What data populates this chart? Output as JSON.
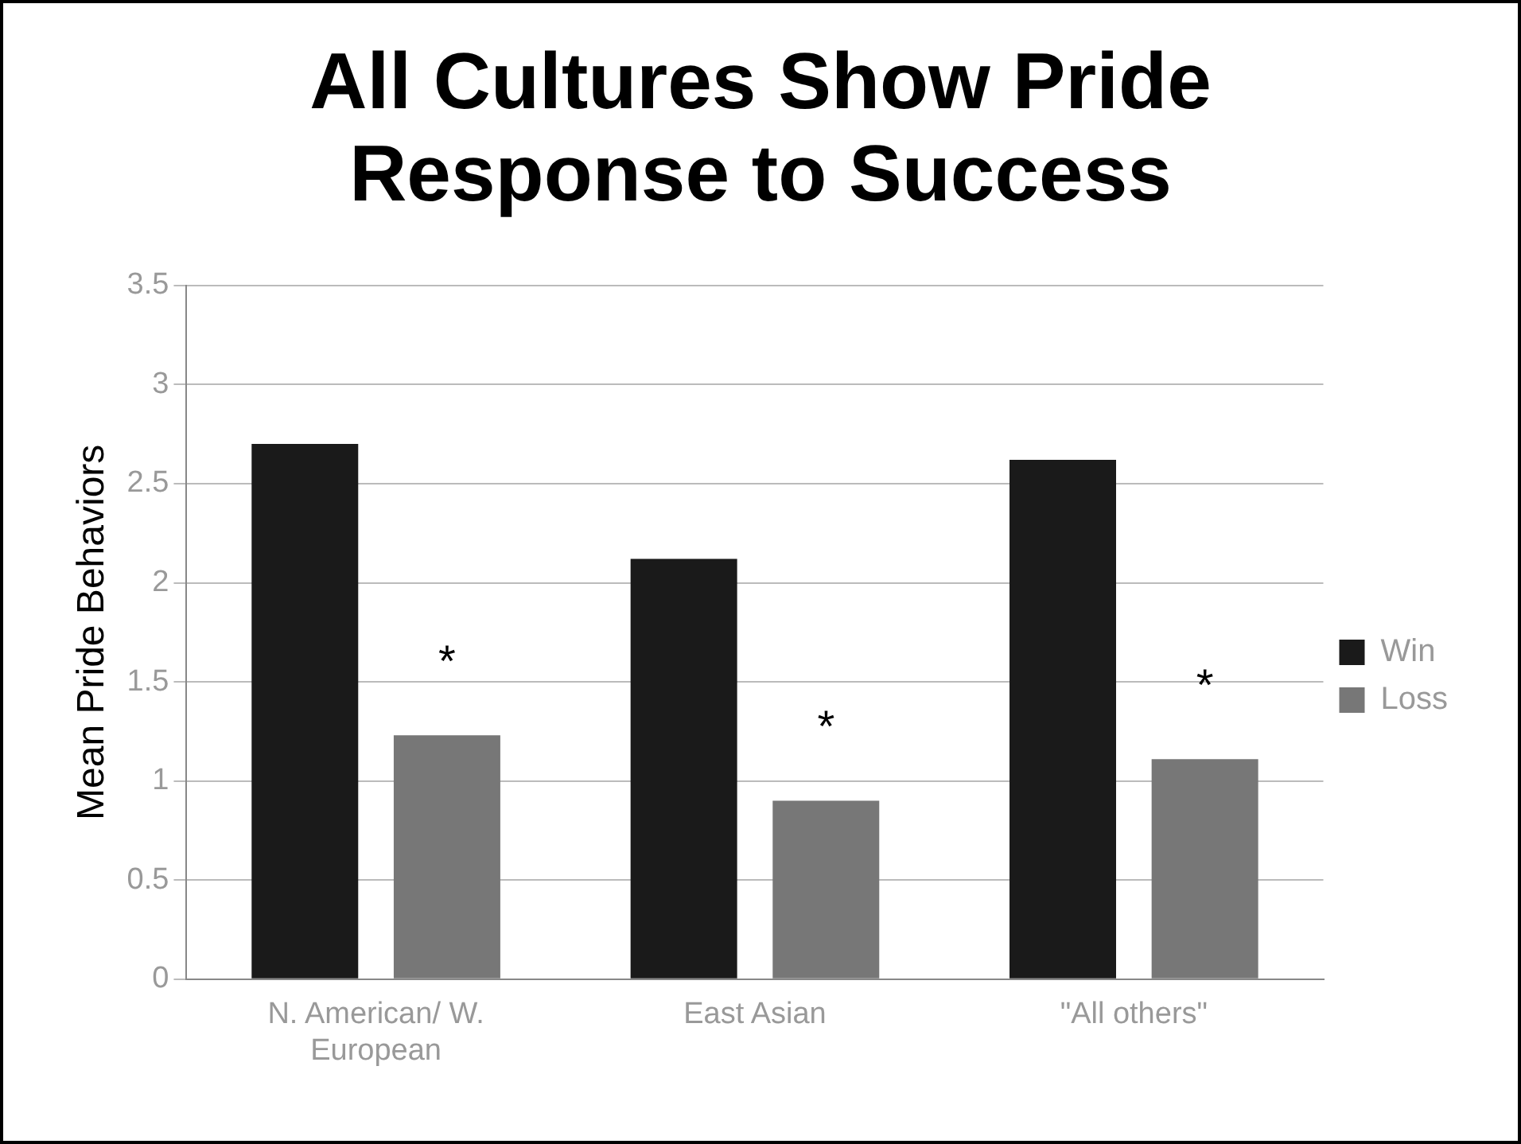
{
  "chart_data": {
    "type": "bar",
    "title": "All Cultures Show Pride Response to Success",
    "ylabel": "Mean Pride Behaviors",
    "categories": [
      "N. American/ W. European",
      "East Asian",
      "\"All others\""
    ],
    "series": [
      {
        "name": "Win",
        "color": "#1a1a1a",
        "values": [
          2.7,
          2.12,
          2.62
        ]
      },
      {
        "name": "Loss",
        "color": "#777777",
        "values": [
          1.23,
          0.9,
          1.11
        ]
      }
    ],
    "ylim": [
      0,
      3.5
    ],
    "yticks": [
      0,
      0.5,
      1,
      1.5,
      2,
      2.5,
      3,
      3.5
    ],
    "grid": "y",
    "legend": "right",
    "annotations": [
      "*",
      "*",
      "*"
    ]
  }
}
